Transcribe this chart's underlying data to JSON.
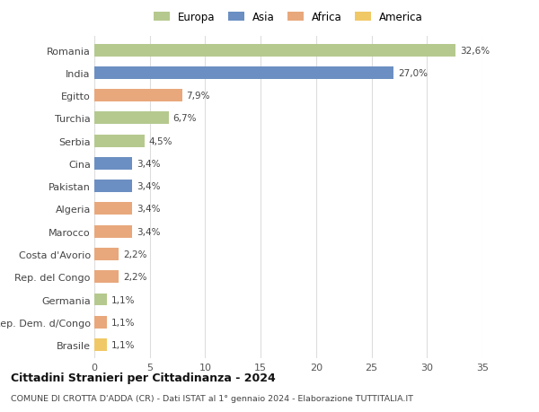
{
  "countries": [
    "Romania",
    "India",
    "Egitto",
    "Turchia",
    "Serbia",
    "Cina",
    "Pakistan",
    "Algeria",
    "Marocco",
    "Costa d'Avorio",
    "Rep. del Congo",
    "Germania",
    "Rep. Dem. d/Congo",
    "Brasile"
  ],
  "values": [
    32.6,
    27.0,
    7.9,
    6.7,
    4.5,
    3.4,
    3.4,
    3.4,
    3.4,
    2.2,
    2.2,
    1.1,
    1.1,
    1.1
  ],
  "labels": [
    "32,6%",
    "27,0%",
    "7,9%",
    "6,7%",
    "4,5%",
    "3,4%",
    "3,4%",
    "3,4%",
    "3,4%",
    "2,2%",
    "2,2%",
    "1,1%",
    "1,1%",
    "1,1%"
  ],
  "colors": [
    "#b5c98e",
    "#6b8fc2",
    "#e8a87c",
    "#b5c98e",
    "#b5c98e",
    "#6b8fc2",
    "#6b8fc2",
    "#e8a87c",
    "#e8a87c",
    "#e8a87c",
    "#e8a87c",
    "#b5c98e",
    "#e8a87c",
    "#f0c866"
  ],
  "legend_labels": [
    "Europa",
    "Asia",
    "Africa",
    "America"
  ],
  "legend_colors": [
    "#b5c98e",
    "#6b8fc2",
    "#e8a87c",
    "#f0c866"
  ],
  "xlim": [
    0,
    35
  ],
  "xticks": [
    0,
    5,
    10,
    15,
    20,
    25,
    30,
    35
  ],
  "title": "Cittadini Stranieri per Cittadinanza - 2024",
  "subtitle": "COMUNE DI CROTTA D'ADDA (CR) - Dati ISTAT al 1° gennaio 2024 - Elaborazione TUTTITALIA.IT",
  "bg_color": "#ffffff",
  "grid_color": "#dddddd",
  "bar_height": 0.55
}
